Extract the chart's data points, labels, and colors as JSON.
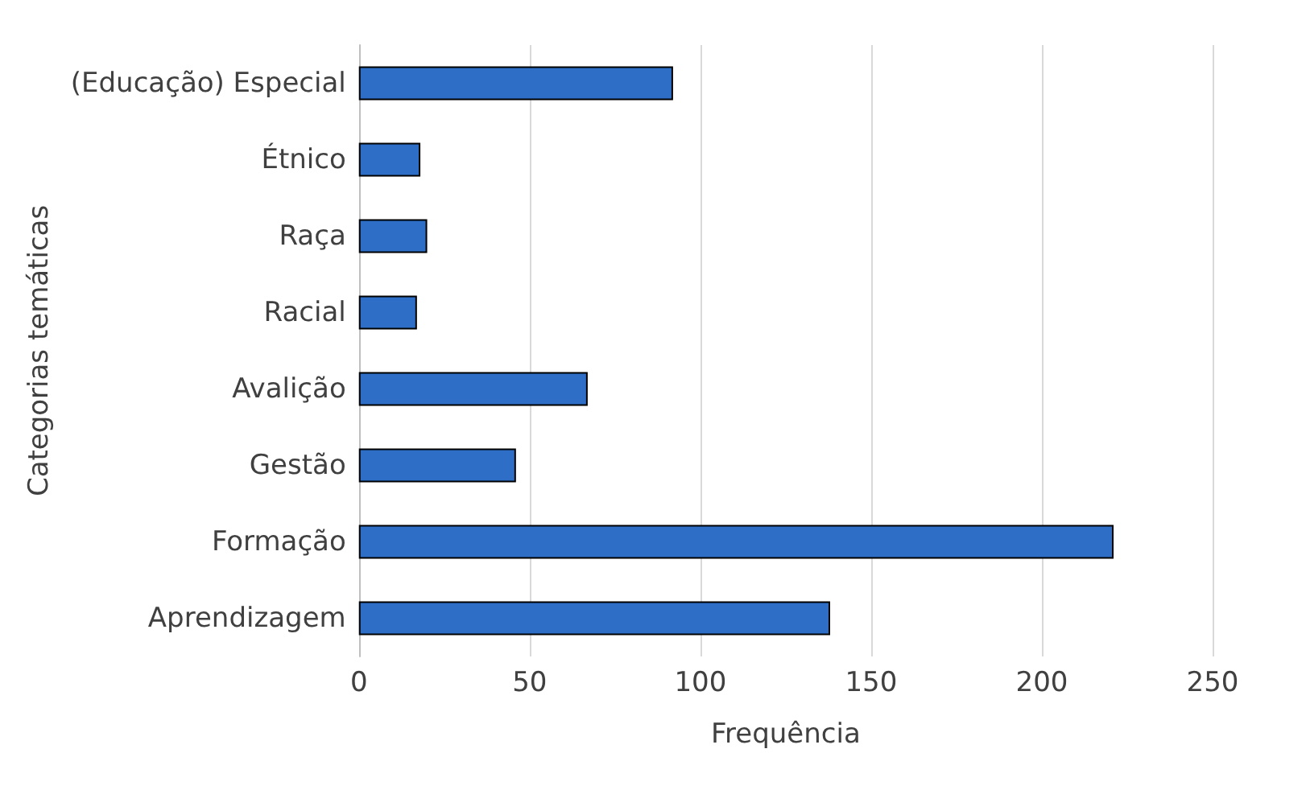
{
  "chart_data": {
    "type": "bar",
    "orientation": "horizontal",
    "xlabel": "Frequência",
    "ylabel": "Categorias temáticas",
    "categories": [
      "(Educação) Especial",
      "Étnico",
      "Raça",
      "Racial",
      "Avalição",
      "Gestão",
      "Formação",
      "Aprendizagem"
    ],
    "values": [
      92,
      18,
      20,
      17,
      67,
      46,
      221,
      138
    ],
    "color": "#2e6ec6",
    "xlim": [
      0,
      250
    ],
    "xticks": [
      0,
      50,
      100,
      150,
      200,
      250
    ],
    "grid": "x"
  }
}
